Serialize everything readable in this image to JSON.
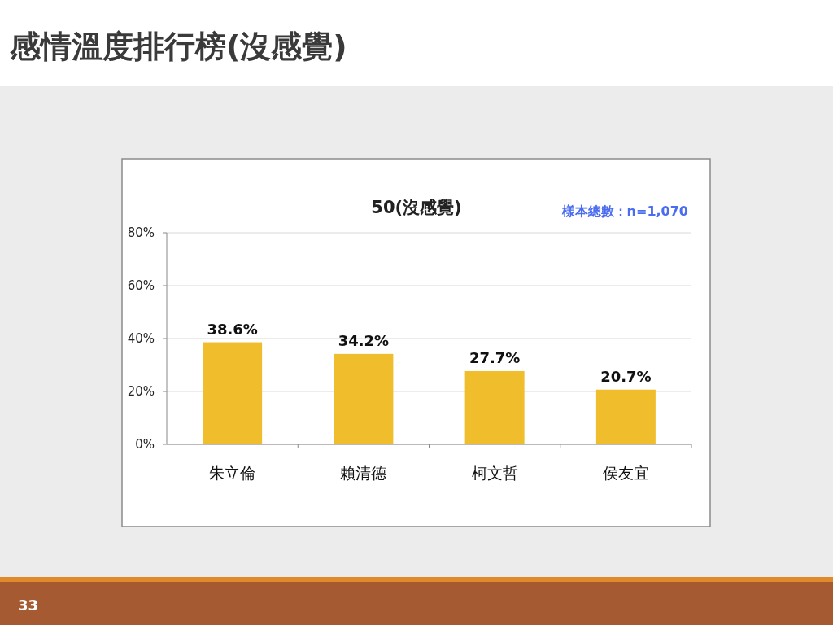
{
  "chart_data": {
    "type": "bar",
    "title": "50(沒感覺)",
    "annotations": [
      "感情溫度排行榜(沒感覺)",
      "樣本總數：n=1,070",
      "33"
    ],
    "categories": [
      "朱立倫",
      "賴清德",
      "柯文哲",
      "侯友宜"
    ],
    "values": [
      38.6,
      34.2,
      27.7,
      20.7
    ],
    "value_labels": [
      "38.6%",
      "34.2%",
      "27.7%",
      "20.7%"
    ],
    "color": "#f0be2c",
    "ylim": [
      0,
      80
    ],
    "yticks": [
      {
        "value": 0,
        "label": "0%"
      },
      {
        "value": 20,
        "label": "20%"
      },
      {
        "value": 40,
        "label": "40%"
      },
      {
        "value": 60,
        "label": "60%"
      },
      {
        "value": 80,
        "label": "80%"
      }
    ],
    "grid": "y"
  }
}
